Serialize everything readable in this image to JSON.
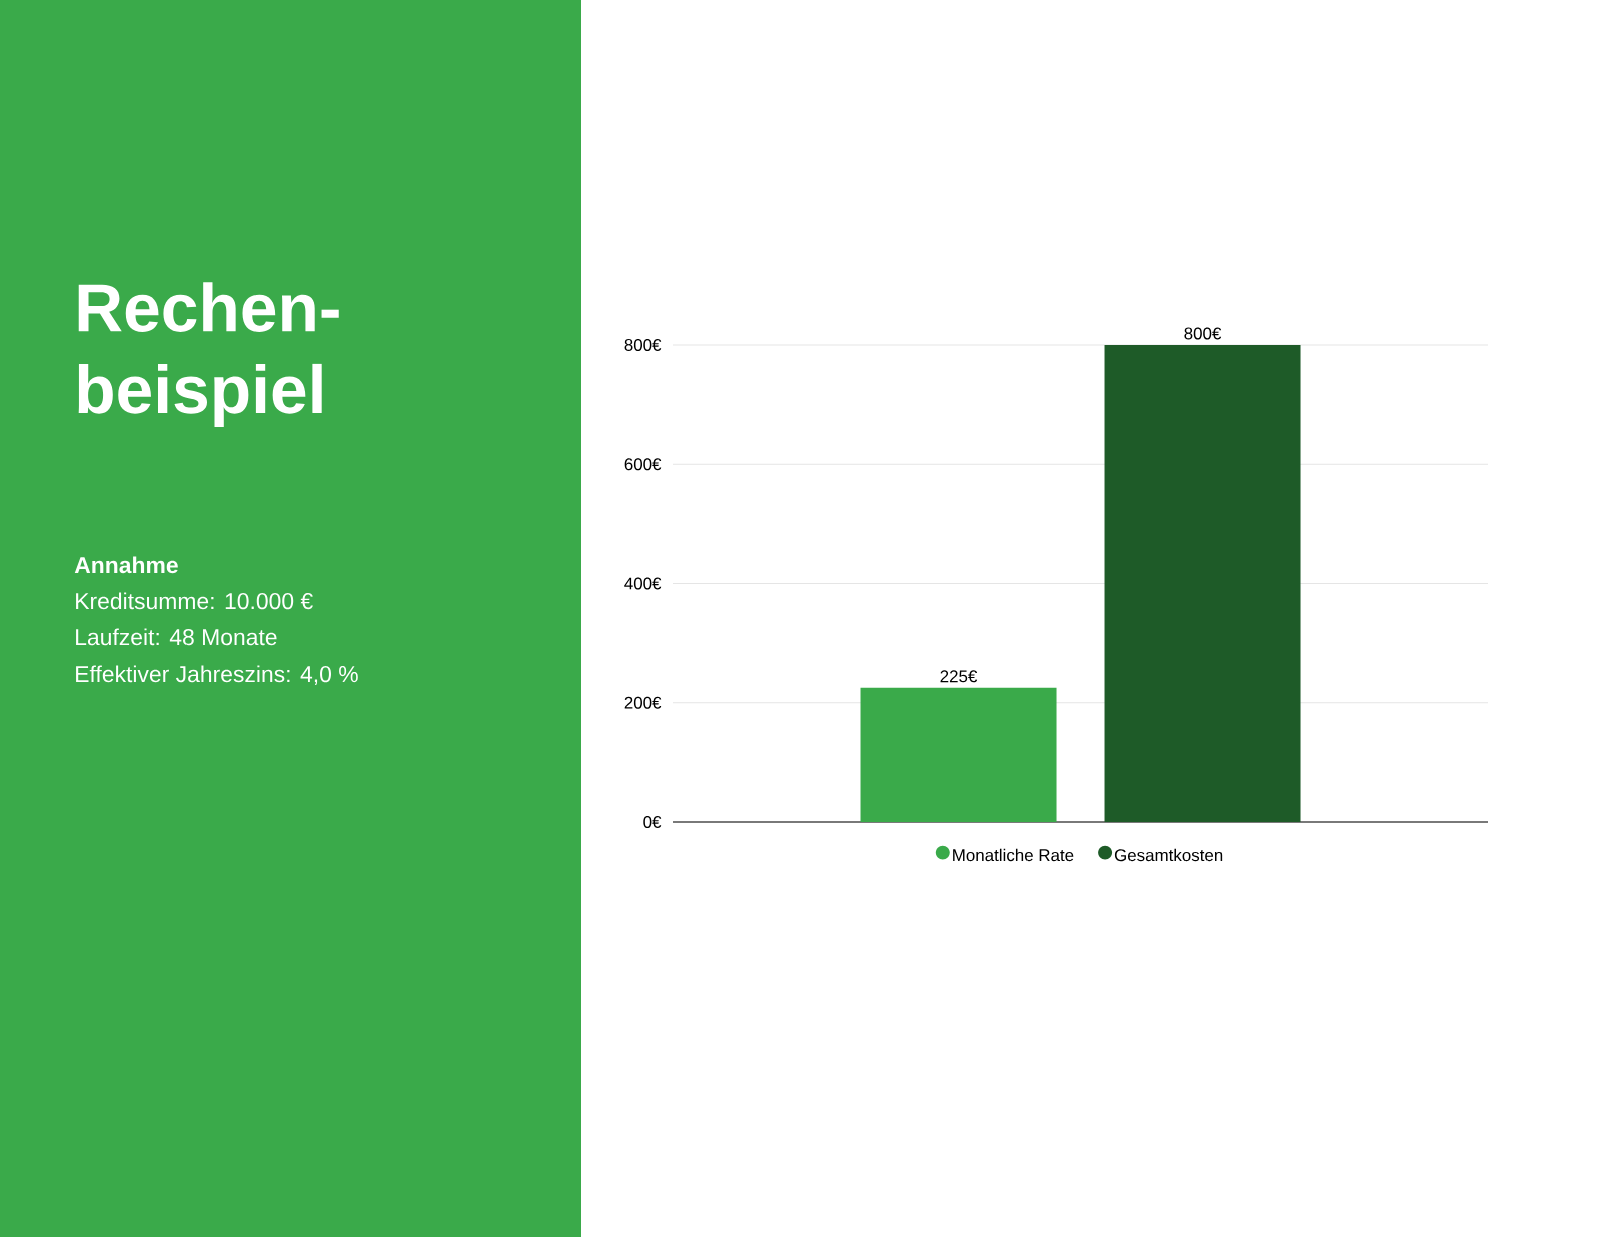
{
  "chart_data": {
    "type": "bar",
    "title": "Rechen-beispiel",
    "annotations": [
      "Annahme",
      "Kreditsumme: 10.000 €",
      "Laufzeit: 48 Monate",
      "Effektiver Jahreszins: 4,0 %"
    ],
    "categories": [
      null
    ],
    "series": [
      {
        "name": "Monatliche Rate",
        "color": "#3aaa4a",
        "values": [
          225
        ],
        "value_labels": [
          "225€"
        ]
      },
      {
        "name": "Gesamtkosten",
        "color": "#1e5b28",
        "values": [
          800
        ],
        "value_labels": [
          "800€"
        ]
      }
    ],
    "ylim": [
      0,
      800
    ],
    "yticks": [
      {
        "value": 0,
        "label": "0€"
      },
      {
        "value": 200,
        "label": "200€"
      },
      {
        "value": 400,
        "label": "400€"
      },
      {
        "value": 600,
        "label": "600€"
      },
      {
        "value": 800,
        "label": "800€"
      }
    ],
    "grid": "y",
    "legend": "bottom",
    "tick_labels": "y"
  }
}
